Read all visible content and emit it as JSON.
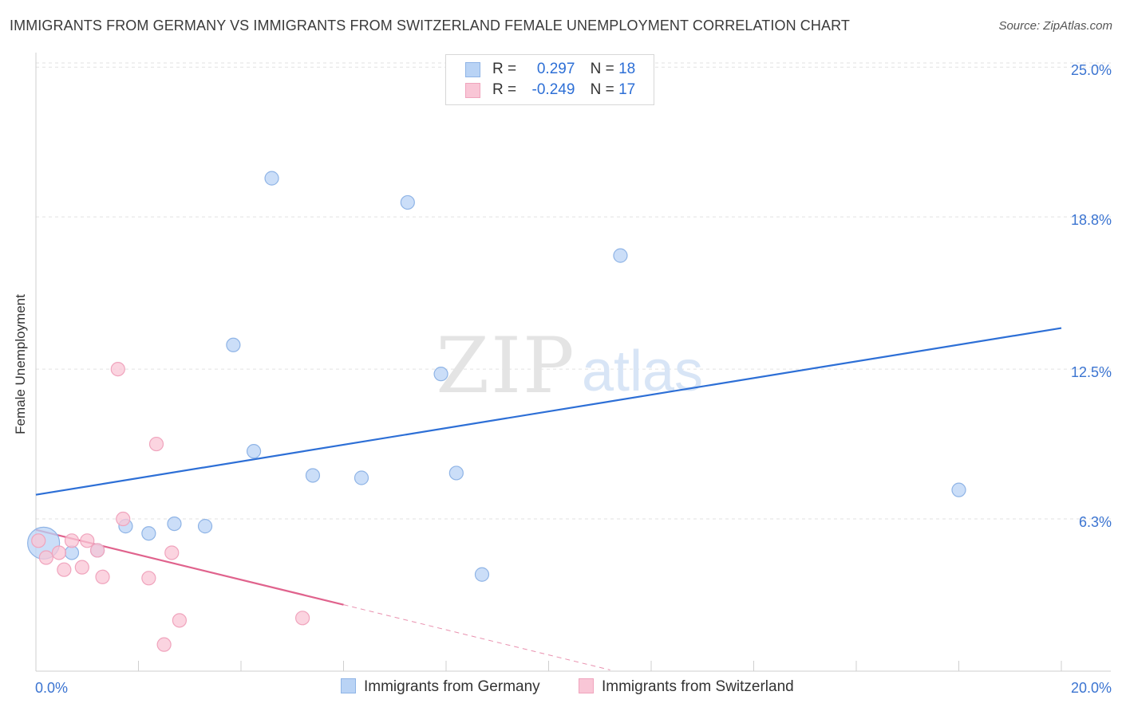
{
  "title": "IMMIGRANTS FROM GERMANY VS IMMIGRANTS FROM SWITZERLAND FEMALE UNEMPLOYMENT CORRELATION CHART",
  "source": "Source: ZipAtlas.com",
  "watermark": {
    "zip": "ZIP",
    "atlas": "atlas"
  },
  "legend_top": {
    "rows": [
      {
        "r_label": "R =",
        "r_value": "0.297",
        "n_label": "N =",
        "n_value": "18"
      },
      {
        "r_label": "R =",
        "r_value": "-0.249",
        "n_label": "N =",
        "n_value": "17"
      }
    ]
  },
  "legend_bottom": {
    "germany": "Immigrants from Germany",
    "switzerland": "Immigrants from Switzerland"
  },
  "colors": {
    "germany_fill": "#b9d3f5",
    "germany_stroke": "#8fb4e6",
    "germany_line": "#2d6fd6",
    "switzerland_fill": "#f9c6d6",
    "switzerland_stroke": "#f0a4bd",
    "switzerland_line": "#e0638d",
    "tick_text": "#3b74d1",
    "grid": "#e2e2e2"
  },
  "chart_data": {
    "type": "scatter",
    "title": "IMMIGRANTS FROM GERMANY VS IMMIGRANTS FROM SWITZERLAND FEMALE UNEMPLOYMENT CORRELATION CHART",
    "xlabel": "",
    "ylabel": "Female Unemployment",
    "xlim": [
      0,
      20
    ],
    "ylim": [
      0,
      25.6
    ],
    "x_tick_labels": [
      "0.0%",
      "20.0%"
    ],
    "y_ticks": [
      6.3,
      12.5,
      18.8,
      25.0
    ],
    "y_tick_labels": [
      "6.3%",
      "12.5%",
      "18.8%",
      "25.0%"
    ],
    "grid": true,
    "series": [
      {
        "name": "Immigrants from Germany",
        "points": [
          {
            "x": 0.15,
            "y": 5.3,
            "big": true
          },
          {
            "x": 0.7,
            "y": 4.9
          },
          {
            "x": 1.2,
            "y": 5.0
          },
          {
            "x": 1.75,
            "y": 6.0
          },
          {
            "x": 2.2,
            "y": 5.7
          },
          {
            "x": 2.7,
            "y": 6.1
          },
          {
            "x": 3.3,
            "y": 6.0
          },
          {
            "x": 3.85,
            "y": 13.5
          },
          {
            "x": 4.25,
            "y": 9.1
          },
          {
            "x": 4.6,
            "y": 20.4
          },
          {
            "x": 5.4,
            "y": 8.1
          },
          {
            "x": 6.35,
            "y": 8.0
          },
          {
            "x": 7.25,
            "y": 19.4
          },
          {
            "x": 7.9,
            "y": 12.3
          },
          {
            "x": 8.2,
            "y": 8.2
          },
          {
            "x": 8.7,
            "y": 4.0
          },
          {
            "x": 11.4,
            "y": 17.2
          },
          {
            "x": 18.0,
            "y": 7.5
          }
        ],
        "trend": {
          "x1": 0,
          "y1": 7.3,
          "x2": 20,
          "y2": 14.2
        }
      },
      {
        "name": "Immigrants from Switzerland",
        "points": [
          {
            "x": 0.05,
            "y": 5.4
          },
          {
            "x": 0.2,
            "y": 4.7
          },
          {
            "x": 0.45,
            "y": 4.9
          },
          {
            "x": 0.55,
            "y": 4.2
          },
          {
            "x": 0.7,
            "y": 5.4
          },
          {
            "x": 0.9,
            "y": 4.3
          },
          {
            "x": 1.0,
            "y": 5.4
          },
          {
            "x": 1.2,
            "y": 5.0
          },
          {
            "x": 1.3,
            "y": 3.9
          },
          {
            "x": 1.6,
            "y": 12.5
          },
          {
            "x": 1.7,
            "y": 6.3
          },
          {
            "x": 2.2,
            "y": 3.85
          },
          {
            "x": 2.35,
            "y": 9.4
          },
          {
            "x": 2.5,
            "y": 1.1
          },
          {
            "x": 2.65,
            "y": 4.9
          },
          {
            "x": 2.8,
            "y": 2.1
          },
          {
            "x": 5.2,
            "y": 2.2
          }
        ],
        "trend": {
          "x1": 0,
          "y1": 5.85,
          "x2": 6.0,
          "y2": 2.75,
          "dash_to_x": 11.2,
          "dash_to_y": 0.05
        }
      }
    ]
  }
}
